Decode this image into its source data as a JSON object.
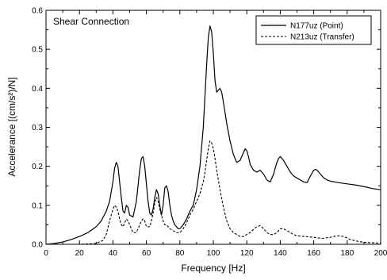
{
  "chart_data": {
    "type": "line",
    "title": "Shear Connection",
    "xlabel": "Frequency [Hz]",
    "ylabel": "Accelerance [(cm/s²)/N]",
    "xlim": [
      0,
      200
    ],
    "ylim": [
      0,
      0.6
    ],
    "xticks": [
      0,
      20,
      40,
      60,
      80,
      100,
      120,
      140,
      160,
      180,
      200
    ],
    "yticks": [
      0.0,
      0.1,
      0.2,
      0.3,
      0.4,
      0.5,
      0.6
    ],
    "xtick_labels": [
      "0",
      "20",
      "40",
      "60",
      "80",
      "100",
      "120",
      "140",
      "160",
      "180",
      "200"
    ],
    "ytick_labels": [
      "0.0",
      "0.1",
      "0.2",
      "0.3",
      "0.4",
      "0.5",
      "0.6"
    ],
    "grid": false,
    "legend_position": "top-right",
    "series": [
      {
        "name": "N177uz (Point)",
        "style": "solid",
        "color": "#000000",
        "x": [
          0,
          5,
          10,
          15,
          20,
          25,
          30,
          33,
          36,
          38,
          40,
          41,
          42,
          43,
          44,
          45,
          46,
          47,
          48,
          49,
          50,
          52,
          54,
          56,
          57,
          58,
          59,
          60,
          61,
          62,
          63,
          64,
          65,
          66,
          67,
          68,
          69,
          70,
          71,
          72,
          73,
          74,
          75,
          76,
          77,
          78,
          79,
          80,
          82,
          84,
          86,
          88,
          90,
          92,
          94,
          95,
          96,
          97,
          98,
          99,
          100,
          101,
          102,
          103,
          104,
          105,
          106,
          108,
          110,
          112,
          114,
          116,
          118,
          119,
          120,
          121,
          122,
          124,
          126,
          128,
          130,
          132,
          134,
          136,
          138,
          139,
          140,
          141,
          142,
          144,
          146,
          148,
          150,
          152,
          154,
          156,
          158,
          160,
          161,
          162,
          164,
          166,
          168,
          170,
          175,
          180,
          185,
          190,
          195,
          200
        ],
        "values": [
          0.0,
          0.002,
          0.006,
          0.012,
          0.02,
          0.03,
          0.045,
          0.06,
          0.085,
          0.11,
          0.16,
          0.195,
          0.21,
          0.2,
          0.16,
          0.12,
          0.085,
          0.08,
          0.1,
          0.095,
          0.075,
          0.07,
          0.11,
          0.19,
          0.22,
          0.225,
          0.2,
          0.155,
          0.11,
          0.08,
          0.075,
          0.09,
          0.12,
          0.14,
          0.13,
          0.1,
          0.075,
          0.1,
          0.145,
          0.15,
          0.135,
          0.1,
          0.075,
          0.06,
          0.05,
          0.045,
          0.04,
          0.04,
          0.05,
          0.065,
          0.085,
          0.1,
          0.14,
          0.2,
          0.3,
          0.38,
          0.46,
          0.53,
          0.56,
          0.545,
          0.49,
          0.42,
          0.39,
          0.395,
          0.4,
          0.39,
          0.365,
          0.31,
          0.265,
          0.23,
          0.21,
          0.215,
          0.235,
          0.245,
          0.24,
          0.225,
          0.205,
          0.19,
          0.185,
          0.19,
          0.18,
          0.165,
          0.16,
          0.18,
          0.21,
          0.22,
          0.225,
          0.22,
          0.215,
          0.2,
          0.185,
          0.175,
          0.17,
          0.165,
          0.16,
          0.158,
          0.175,
          0.19,
          0.192,
          0.19,
          0.18,
          0.17,
          0.165,
          0.162,
          0.158,
          0.155,
          0.152,
          0.148,
          0.143,
          0.14
        ]
      },
      {
        "name": "N213uz (Transfer)",
        "style": "dashed",
        "color": "#000000",
        "x": [
          0,
          10,
          20,
          30,
          34,
          36,
          38,
          40,
          41,
          42,
          43,
          44,
          45,
          46,
          47,
          48,
          49,
          50,
          52,
          54,
          56,
          57,
          58,
          59,
          60,
          62,
          63,
          64,
          65,
          66,
          67,
          68,
          70,
          71,
          72,
          73,
          74,
          76,
          78,
          80,
          82,
          84,
          86,
          88,
          90,
          92,
          94,
          95,
          96,
          97,
          98,
          99,
          100,
          101,
          102,
          104,
          106,
          108,
          110,
          112,
          114,
          116,
          118,
          120,
          122,
          124,
          126,
          128,
          130,
          132,
          134,
          136,
          138,
          140,
          142,
          144,
          146,
          148,
          150,
          155,
          160,
          165,
          170,
          174,
          178,
          182,
          186,
          190,
          195,
          200
        ],
        "values": [
          0.0,
          0.0,
          0.0,
          0.002,
          0.01,
          0.025,
          0.06,
          0.09,
          0.1,
          0.095,
          0.085,
          0.065,
          0.05,
          0.045,
          0.055,
          0.065,
          0.06,
          0.05,
          0.03,
          0.03,
          0.05,
          0.06,
          0.065,
          0.06,
          0.045,
          0.045,
          0.06,
          0.08,
          0.105,
          0.12,
          0.11,
          0.09,
          0.06,
          0.05,
          0.05,
          0.045,
          0.04,
          0.035,
          0.03,
          0.03,
          0.04,
          0.055,
          0.075,
          0.09,
          0.11,
          0.13,
          0.16,
          0.185,
          0.215,
          0.245,
          0.265,
          0.26,
          0.245,
          0.22,
          0.19,
          0.14,
          0.095,
          0.06,
          0.04,
          0.03,
          0.025,
          0.02,
          0.02,
          0.025,
          0.03,
          0.038,
          0.045,
          0.048,
          0.04,
          0.03,
          0.025,
          0.025,
          0.03,
          0.04,
          0.04,
          0.035,
          0.03,
          0.025,
          0.022,
          0.02,
          0.018,
          0.015,
          0.018,
          0.022,
          0.02,
          0.012,
          0.008,
          0.005,
          0.004,
          0.003
        ]
      }
    ]
  }
}
